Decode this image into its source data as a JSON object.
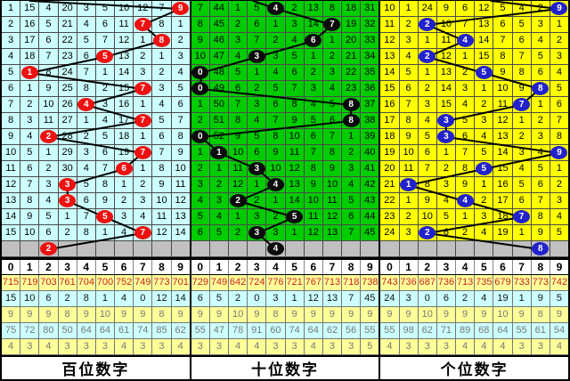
{
  "colors": {
    "hundreds_bg": "#CCFFFF",
    "tens_bg": "#00CC00",
    "units_bg": "#FFFF00",
    "gray_prediction_row_bg": "#C0C0C0",
    "red_ball": "#EE1111",
    "black_ball": "#0A0A0A",
    "blue_ball": "#2222CC",
    "line": "#000000",
    "stat_yellow_bg": "#FFFF99",
    "stat_cyan_bg": "#CCFFFF",
    "stat_red_text": "#CC2222",
    "stat_gray_text": "#777777"
  },
  "digit_header": [
    "0",
    "1",
    "2",
    "3",
    "4",
    "5",
    "6",
    "7",
    "8",
    "9"
  ],
  "chart_data": [
    {
      "type": "table",
      "name": "hundreds-digit-panel",
      "title": "百位数字",
      "bg_color": "#CCFFFF",
      "ball_color": "#EE1111",
      "lead_in_col": 1.5,
      "digit_columns": [
        "0",
        "1",
        "2",
        "3",
        "4",
        "5",
        "6",
        "7",
        "8",
        "9"
      ],
      "miss_matrix": [
        [
          1,
          15,
          4,
          20,
          3,
          5,
          10,
          12,
          7,
          9
        ],
        [
          2,
          16,
          5,
          21,
          4,
          6,
          11,
          7,
          8,
          1
        ],
        [
          3,
          17,
          6,
          22,
          5,
          7,
          12,
          1,
          8,
          2
        ],
        [
          4,
          18,
          7,
          23,
          6,
          5,
          13,
          2,
          1,
          3
        ],
        [
          5,
          1,
          8,
          24,
          7,
          1,
          14,
          3,
          2,
          4
        ],
        [
          6,
          1,
          9,
          25,
          8,
          2,
          15,
          7,
          3,
          5
        ],
        [
          7,
          2,
          10,
          26,
          4,
          3,
          16,
          1,
          4,
          6
        ],
        [
          8,
          3,
          11,
          27,
          1,
          4,
          17,
          7,
          5,
          7
        ],
        [
          9,
          4,
          2,
          28,
          2,
          5,
          18,
          1,
          6,
          8
        ],
        [
          10,
          5,
          1,
          29,
          3,
          6,
          19,
          7,
          7,
          9
        ],
        [
          11,
          6,
          2,
          30,
          4,
          7,
          6,
          1,
          8,
          10
        ],
        [
          12,
          7,
          3,
          3,
          5,
          8,
          1,
          2,
          9,
          11
        ],
        [
          13,
          8,
          4,
          3,
          6,
          9,
          2,
          3,
          10,
          12
        ],
        [
          14,
          9,
          5,
          1,
          7,
          5,
          3,
          4,
          11,
          13
        ],
        [
          15,
          10,
          6,
          2,
          8,
          1,
          4,
          7,
          12,
          14
        ]
      ],
      "drawn_digit_per_row": [
        9,
        7,
        8,
        5,
        1,
        7,
        4,
        7,
        2,
        7,
        6,
        3,
        3,
        5,
        7
      ],
      "predicted_digit": 2,
      "stats_rows": [
        [
          715,
          719,
          703,
          761,
          704,
          700,
          752,
          749,
          773,
          701
        ],
        [
          15,
          10,
          6,
          2,
          8,
          1,
          4,
          0,
          12,
          14
        ],
        [
          9,
          9,
          9,
          8,
          9,
          10,
          9,
          9,
          8,
          9
        ],
        [
          75,
          72,
          80,
          50,
          64,
          64,
          61,
          74,
          85,
          62
        ],
        [
          4,
          3,
          4,
          3,
          3,
          3,
          4,
          3,
          3,
          4
        ]
      ]
    },
    {
      "type": "table",
      "name": "tens-digit-panel",
      "title": "十位数字",
      "bg_color": "#00CC00",
      "ball_color": "#0A0A0A",
      "lead_in_col": 3.3,
      "digit_columns": [
        "0",
        "1",
        "2",
        "3",
        "4",
        "5",
        "6",
        "7",
        "8",
        "9"
      ],
      "miss_matrix": [
        [
          7,
          44,
          1,
          5,
          4,
          2,
          13,
          8,
          18,
          31
        ],
        [
          8,
          45,
          2,
          6,
          1,
          3,
          14,
          7,
          19,
          32
        ],
        [
          9,
          46,
          3,
          7,
          2,
          4,
          6,
          1,
          20,
          33
        ],
        [
          10,
          47,
          4,
          3,
          3,
          5,
          1,
          2,
          21,
          34
        ],
        [
          0,
          48,
          5,
          1,
          4,
          6,
          2,
          3,
          22,
          35
        ],
        [
          0,
          49,
          6,
          2,
          5,
          7,
          3,
          4,
          23,
          36
        ],
        [
          1,
          50,
          7,
          3,
          6,
          8,
          4,
          5,
          8,
          37
        ],
        [
          2,
          51,
          8,
          4,
          7,
          9,
          5,
          6,
          8,
          38
        ],
        [
          0,
          52,
          9,
          5,
          8,
          10,
          6,
          7,
          1,
          39
        ],
        [
          1,
          1,
          10,
          6,
          9,
          11,
          7,
          8,
          2,
          40
        ],
        [
          2,
          1,
          11,
          3,
          10,
          12,
          8,
          9,
          3,
          41
        ],
        [
          3,
          2,
          12,
          1,
          4,
          13,
          9,
          10,
          4,
          42
        ],
        [
          4,
          3,
          2,
          2,
          1,
          14,
          10,
          11,
          5,
          43
        ],
        [
          5,
          4,
          1,
          3,
          2,
          5,
          11,
          12,
          6,
          44
        ],
        [
          6,
          5,
          2,
          3,
          3,
          1,
          12,
          13,
          7,
          45
        ]
      ],
      "drawn_digit_per_row": [
        4,
        7,
        6,
        3,
        0,
        0,
        8,
        8,
        0,
        1,
        3,
        4,
        2,
        5,
        3
      ],
      "predicted_digit": 4,
      "stats_rows": [
        [
          729,
          749,
          642,
          724,
          776,
          721,
          767,
          713,
          718,
          738
        ],
        [
          6,
          5,
          2,
          0,
          3,
          1,
          12,
          13,
          7,
          45
        ],
        [
          9,
          9,
          10,
          9,
          8,
          9,
          9,
          9,
          9,
          9
        ],
        [
          55,
          47,
          78,
          91,
          60,
          74,
          64,
          62,
          56,
          55
        ],
        [
          3,
          3,
          4,
          4,
          3,
          3,
          4,
          3,
          3,
          5
        ]
      ]
    },
    {
      "type": "table",
      "name": "units-digit-panel",
      "title": "个位数字",
      "bg_color": "#FFFF00",
      "ball_color": "#2222CC",
      "lead_in_col": 5.9,
      "digit_columns": [
        "0",
        "1",
        "2",
        "3",
        "4",
        "5",
        "6",
        "7",
        "8",
        "9"
      ],
      "miss_matrix": [
        [
          10,
          1,
          24,
          9,
          6,
          12,
          5,
          4,
          2,
          9
        ],
        [
          11,
          2,
          2,
          10,
          7,
          13,
          6,
          5,
          3,
          1
        ],
        [
          12,
          3,
          1,
          11,
          4,
          14,
          7,
          6,
          4,
          2
        ],
        [
          13,
          4,
          2,
          12,
          1,
          15,
          8,
          7,
          5,
          3
        ],
        [
          14,
          5,
          1,
          13,
          2,
          5,
          9,
          8,
          6,
          4
        ],
        [
          15,
          6,
          2,
          14,
          3,
          1,
          10,
          9,
          8,
          5
        ],
        [
          16,
          7,
          3,
          15,
          4,
          2,
          11,
          7,
          1,
          6
        ],
        [
          17,
          8,
          4,
          3,
          5,
          3,
          12,
          1,
          2,
          7
        ],
        [
          18,
          9,
          5,
          3,
          6,
          4,
          13,
          2,
          3,
          8
        ],
        [
          19,
          10,
          6,
          1,
          7,
          5,
          14,
          3,
          4,
          9
        ],
        [
          20,
          11,
          7,
          2,
          8,
          5,
          15,
          4,
          5,
          1
        ],
        [
          21,
          1,
          8,
          3,
          9,
          1,
          16,
          5,
          6,
          2
        ],
        [
          22,
          1,
          9,
          4,
          4,
          2,
          17,
          6,
          7,
          3
        ],
        [
          23,
          2,
          10,
          5,
          1,
          3,
          18,
          7,
          8,
          4
        ],
        [
          24,
          3,
          2,
          6,
          2,
          4,
          19,
          1,
          9,
          5
        ]
      ],
      "drawn_digit_per_row": [
        9,
        2,
        4,
        2,
        5,
        8,
        7,
        3,
        3,
        9,
        5,
        1,
        4,
        7,
        2
      ],
      "predicted_digit": 8,
      "stats_rows": [
        [
          743,
          736,
          687,
          736,
          713,
          735,
          679,
          733,
          773,
          742
        ],
        [
          24,
          3,
          0,
          6,
          2,
          4,
          19,
          1,
          9,
          5
        ],
        [
          9,
          9,
          10,
          9,
          9,
          9,
          10,
          9,
          8,
          9
        ],
        [
          55,
          98,
          62,
          71,
          89,
          68,
          64,
          55,
          61,
          54
        ],
        [
          4,
          3,
          3,
          3,
          4,
          4,
          4,
          3,
          3,
          4
        ]
      ]
    }
  ]
}
